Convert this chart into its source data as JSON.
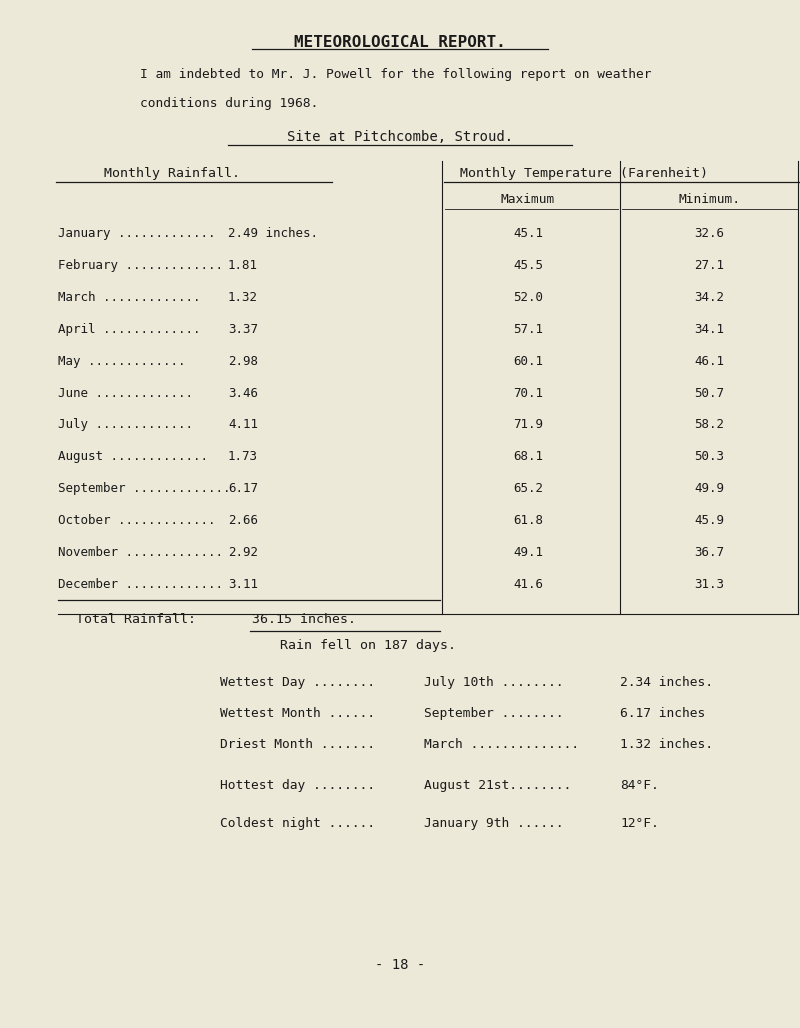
{
  "title": "METEOROLOGICAL REPORT.",
  "intro_line1": "I am indebted to Mr. J. Powell for the following report on weather",
  "intro_line2": "conditions during 1968.",
  "site": "Site at Pitchcombe, Stroud.",
  "col_header_left": "Monthly Rainfall.",
  "col_header_right": "Monthly Temperature (Farenheit)",
  "subheader_max": "Maximum",
  "subheader_min": "Minimum.",
  "months": [
    "January",
    "February",
    "March",
    "April",
    "May",
    "June",
    "July",
    "August",
    "September",
    "October",
    "November",
    "December"
  ],
  "rainfall": [
    "2.49 inches.",
    "1.81",
    "1.32",
    "3.37",
    "2.98",
    "3.46",
    "4.11",
    "1.73",
    "6.17",
    "2.66",
    "2.92",
    "3.11"
  ],
  "max_temp": [
    "45.1",
    "45.5",
    "52.0",
    "57.1",
    "60.1",
    "70.1",
    "71.9",
    "68.1",
    "65.2",
    "61.8",
    "49.1",
    "41.6"
  ],
  "min_temp": [
    "32.6",
    "27.1",
    "34.2",
    "34.1",
    "46.1",
    "50.7",
    "58.2",
    "50.3",
    "49.9",
    "45.9",
    "36.7",
    "31.3"
  ],
  "rain_days": "Rain fell on 187 days.",
  "wettest_day_label": "Wettest Day ........",
  "wettest_day_value": "July 10th ........",
  "wettest_day_amount": "2.34 inches.",
  "wettest_month_label": "Wettest Month ......",
  "wettest_month_value": "September ........",
  "wettest_month_amount": "6.17 inches",
  "driest_month_label": "Driest Month .......",
  "driest_month_value": "March ..............",
  "driest_month_amount": "1.32 inches.",
  "hottest_day_label": "Hottest day ........",
  "hottest_day_value": "August 21st........",
  "hottest_day_amount": "84°F.",
  "coldest_night_label": "Coldest night ......",
  "coldest_night_value": "January 9th ......",
  "coldest_night_amount": "12°F.",
  "page_number": "- 18 -",
  "bg_color": "#ede9d8",
  "text_color": "#1a1a1a"
}
